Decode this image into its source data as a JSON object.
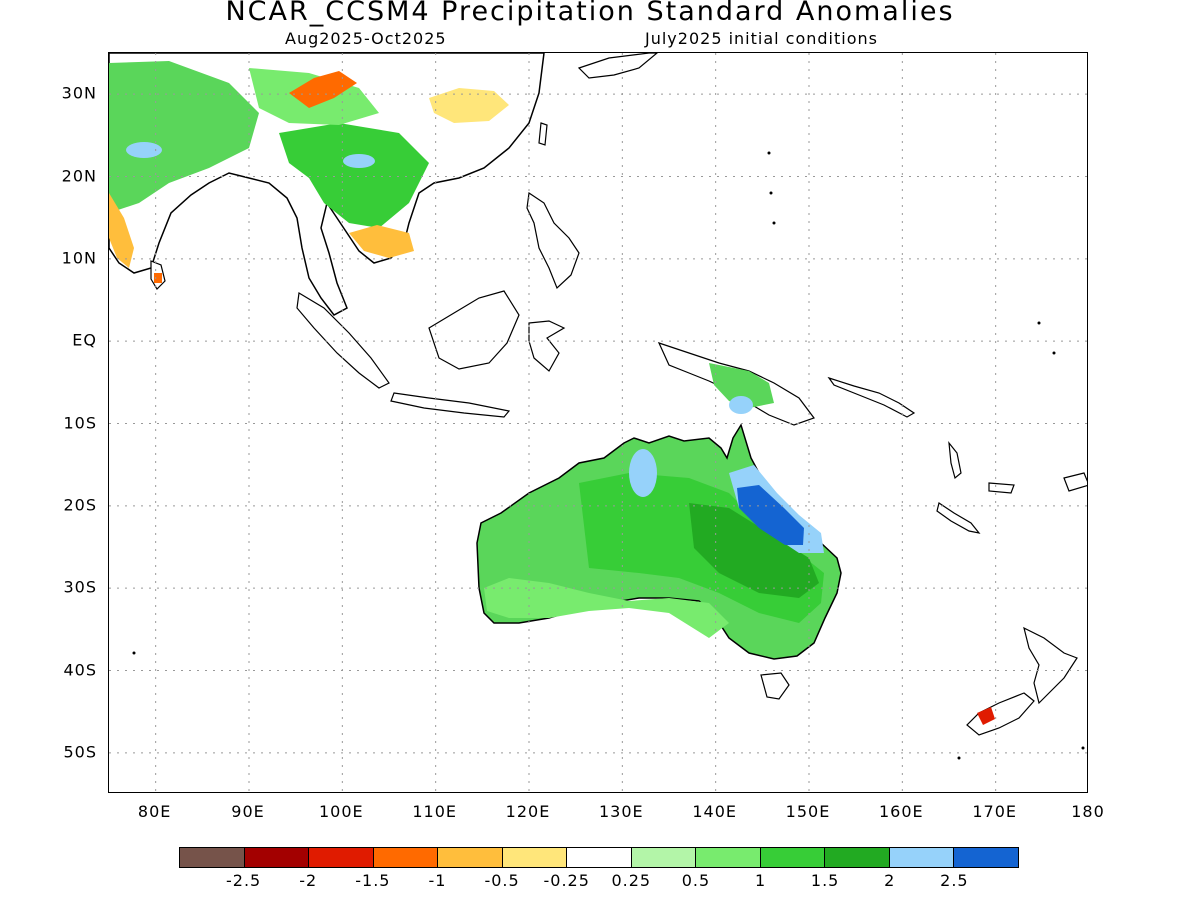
{
  "header": {
    "title": "NCAR_CCSM4 Precipitation Standard Anomalies",
    "period": "Aug2025-Oct2025",
    "initial_conditions": "July2025 initial conditions"
  },
  "map": {
    "region": {
      "lon_min": 75,
      "lon_max": 180,
      "lat_min": -55,
      "lat_max": 35
    },
    "lat_ticks": [
      {
        "value": 30,
        "label": "30N"
      },
      {
        "value": 20,
        "label": "20N"
      },
      {
        "value": 10,
        "label": "10N"
      },
      {
        "value": 0,
        "label": "EQ"
      },
      {
        "value": -10,
        "label": "10S"
      },
      {
        "value": -20,
        "label": "20S"
      },
      {
        "value": -30,
        "label": "30S"
      },
      {
        "value": -40,
        "label": "40S"
      },
      {
        "value": -50,
        "label": "50S"
      }
    ],
    "lon_ticks": [
      {
        "value": 80,
        "label": "80E"
      },
      {
        "value": 90,
        "label": "90E"
      },
      {
        "value": 100,
        "label": "100E"
      },
      {
        "value": 110,
        "label": "110E"
      },
      {
        "value": 120,
        "label": "120E"
      },
      {
        "value": 130,
        "label": "130E"
      },
      {
        "value": 140,
        "label": "140E"
      },
      {
        "value": 150,
        "label": "150E"
      },
      {
        "value": 160,
        "label": "160E"
      },
      {
        "value": 170,
        "label": "170E"
      },
      {
        "value": 180,
        "label": "180"
      }
    ],
    "grid": "dotted"
  },
  "colorbar": {
    "colors": [
      "#76534a",
      "#a30000",
      "#e01b00",
      "#ff6a00",
      "#ffbe3c",
      "#ffe67a",
      "#ffffff",
      "#b3f5a8",
      "#78eb6e",
      "#37cd37",
      "#22aa22",
      "#96d2fa",
      "#1464d2"
    ],
    "labels": [
      "-2.5",
      "-2",
      "-1.5",
      "-1",
      "-0.5",
      "-0.25",
      "0.25",
      "0.5",
      "1",
      "1.5",
      "2",
      "2.5"
    ]
  }
}
